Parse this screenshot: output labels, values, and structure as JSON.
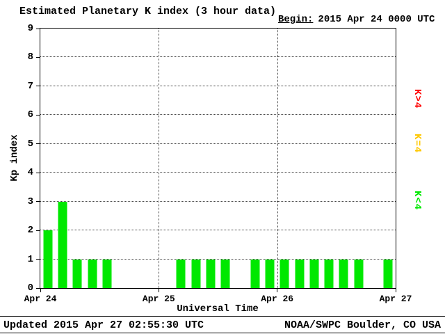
{
  "header": {
    "title": "Estimated Planetary K index (3 hour data)",
    "begin_label": "Begin:",
    "begin_value": "2015 Apr 24 0000 UTC"
  },
  "chart_data": {
    "type": "bar",
    "title": "Estimated Planetary K index (3 hour data)",
    "xlabel": "Universal Time",
    "ylabel": "Kp index",
    "ylim": [
      0,
      9
    ],
    "y_ticks": [
      0,
      1,
      2,
      3,
      4,
      5,
      6,
      7,
      8,
      9
    ],
    "x_tick_labels": [
      "Apr 24",
      "Apr 25",
      "Apr 26",
      "Apr 27"
    ],
    "slots_per_day": 8,
    "hours_per_slot": 3,
    "values": [
      2,
      3,
      1,
      1,
      1,
      0,
      0,
      0,
      0,
      1,
      1,
      1,
      1,
      0,
      1,
      1,
      1,
      1,
      1,
      1,
      1,
      1,
      0,
      1
    ],
    "bar_color": "#00e800",
    "grid": {
      "horizontal": "dotted at each integer 1-8",
      "vertical": "dotted at day boundaries"
    },
    "legend": [
      {
        "label": "K>4",
        "color": "#ff0000"
      },
      {
        "label": "K=4",
        "color": "#ffc800"
      },
      {
        "label": "K<4",
        "color": "#00e800"
      }
    ]
  },
  "footer": {
    "updated": "Updated 2015 Apr 27 02:55:30 UTC",
    "credit": "NOAA/SWPC Boulder, CO USA"
  }
}
